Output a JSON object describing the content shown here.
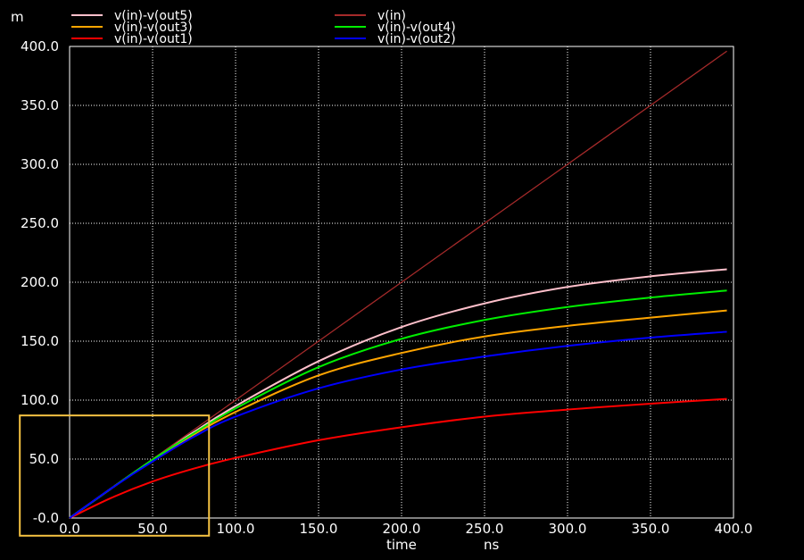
{
  "chart_data": {
    "type": "line",
    "y_unit": "m",
    "xlabel": "time",
    "x_unit": "ns",
    "xlim": [
      0,
      400
    ],
    "ylim": [
      0,
      400
    ],
    "x_ticks": [
      "0.0",
      "50.0",
      "100.0",
      "150.0",
      "200.0",
      "250.0",
      "300.0",
      "350.0",
      "400.0"
    ],
    "y_ticks": [
      "-0.0",
      "50.0",
      "100.0",
      "150.0",
      "200.0",
      "250.0",
      "300.0",
      "350.0",
      "400.0"
    ],
    "grid": true,
    "legend_placement": "top",
    "x": [
      0,
      25,
      50,
      75,
      100,
      150,
      200,
      250,
      300,
      350,
      396
    ],
    "series": [
      {
        "name": "v(in)-v(out5)",
        "color": "#ffc0cb",
        "values": [
          0,
          25,
          49.5,
          73,
          95,
          133,
          162,
          182,
          196,
          205,
          211
        ]
      },
      {
        "name": "v(in)",
        "color": "#a52a2a",
        "values": [
          0,
          25,
          50,
          75,
          100,
          150,
          200,
          250,
          300,
          350,
          396
        ]
      },
      {
        "name": "v(in)-v(out3)",
        "color": "#ffa500",
        "values": [
          0,
          25,
          49,
          71,
          90,
          121,
          140,
          154,
          163,
          170,
          176
        ]
      },
      {
        "name": "v(in)-v(out4)",
        "color": "#00ee00",
        "values": [
          0,
          25,
          49.5,
          72,
          93,
          128,
          152,
          168,
          179,
          187,
          193
        ]
      },
      {
        "name": "v(in)-v(out1)",
        "color": "#ff0000",
        "values": [
          0,
          17,
          31,
          42,
          51,
          66,
          77,
          86,
          92,
          97,
          101
        ]
      },
      {
        "name": "v(in)-v(out2)",
        "color": "#0000ff",
        "values": [
          0,
          25,
          48,
          69,
          86,
          110,
          126,
          137,
          146,
          153,
          158
        ]
      }
    ],
    "highlight_box": {
      "x": [
        -30,
        84
      ],
      "y": [
        -15,
        87
      ]
    }
  }
}
